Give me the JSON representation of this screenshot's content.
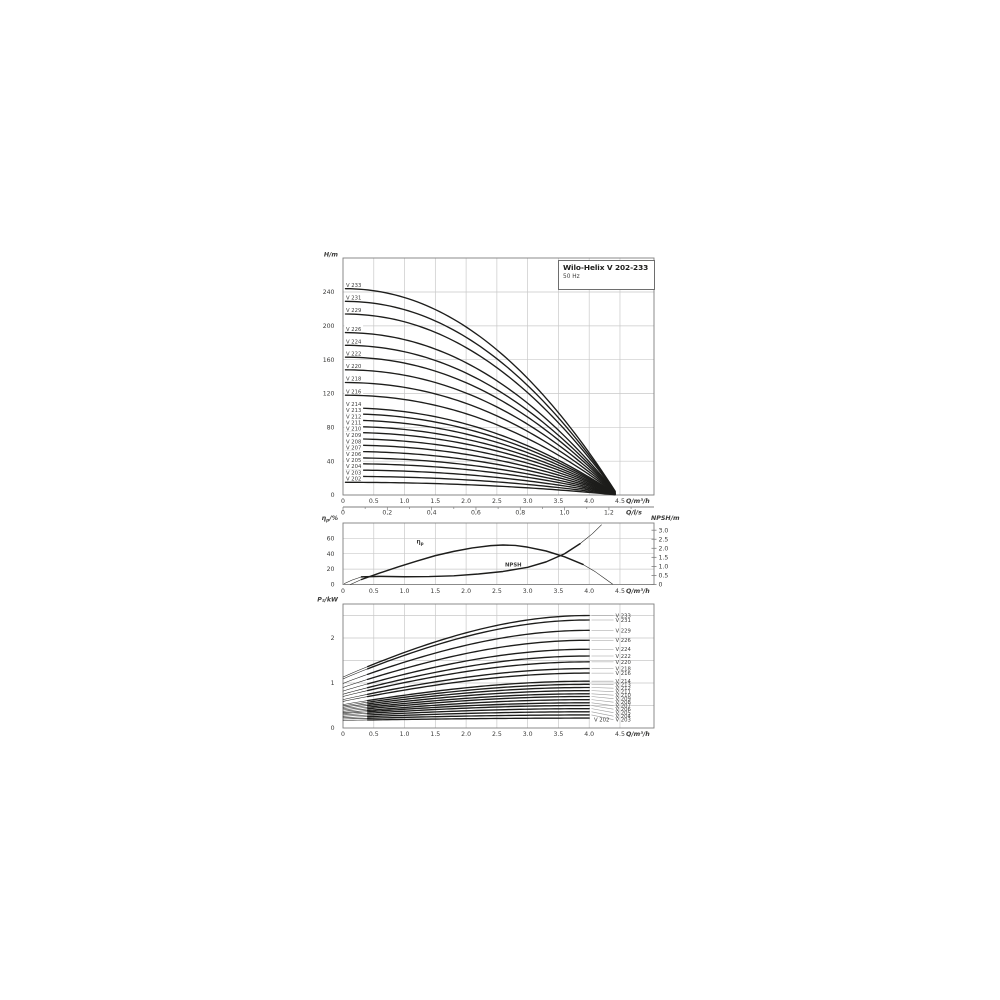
{
  "title_box": {
    "title": "Wilo-Helix V 202-233",
    "subtitle": "50 Hz"
  },
  "colors": {
    "background": "#ffffff",
    "curve": "#1d1d1b",
    "grid": "#c9c9c9",
    "frame": "#7f7f7f",
    "text": "#3c3c3b",
    "leader": "#9b9b9b"
  },
  "chart_data": [
    {
      "id": "head_flow",
      "type": "line",
      "title": "Wilo-Helix V 202-233",
      "subtitle": "50 Hz",
      "ylabel": "H/m",
      "xlabel": "Q/m³/h",
      "x2label": "Q/l/s",
      "xlim": [
        0,
        4.5
      ],
      "ylim": [
        0,
        280
      ],
      "yticks": [
        "0",
        "40",
        "80",
        "120",
        "160",
        "200",
        "240"
      ],
      "xticks": [
        {
          "v": 0,
          "l": "0"
        },
        {
          "v": 0.5,
          "l": "0.5"
        },
        {
          "v": 1,
          "l": "1.0"
        },
        {
          "v": 1.5,
          "l": "1.5"
        },
        {
          "v": 2,
          "l": "2.0"
        },
        {
          "v": 2.5,
          "l": "2.5"
        },
        {
          "v": 3,
          "l": "3.0"
        },
        {
          "v": 3.5,
          "l": "3.5"
        },
        {
          "v": 4,
          "l": "4.0"
        },
        {
          "v": 4.5,
          "l": "4.5"
        }
      ],
      "x2ticks": [
        {
          "v": 0,
          "l": "0"
        },
        {
          "v": 0.2,
          "l": "0,2"
        },
        {
          "v": 0.4,
          "l": "0,4"
        },
        {
          "v": 0.6,
          "l": "0,6"
        },
        {
          "v": 0.8,
          "l": "0,8"
        },
        {
          "v": 1.0,
          "l": "1,0"
        },
        {
          "v": 1.2,
          "l": "1,2"
        }
      ],
      "q_end": 4.42,
      "series": [
        {
          "name": "V 233",
          "shutoff_head_m": 244
        },
        {
          "name": "V 231",
          "shutoff_head_m": 229
        },
        {
          "name": "V 229",
          "shutoff_head_m": 214
        },
        {
          "name": "V 226",
          "shutoff_head_m": 192
        },
        {
          "name": "V 224",
          "shutoff_head_m": 177
        },
        {
          "name": "V 222",
          "shutoff_head_m": 163
        },
        {
          "name": "V 220",
          "shutoff_head_m": 148
        },
        {
          "name": "V 218",
          "shutoff_head_m": 133
        },
        {
          "name": "V 216",
          "shutoff_head_m": 118
        },
        {
          "name": "V 214",
          "shutoff_head_m": 103
        },
        {
          "name": "V 213",
          "shutoff_head_m": 96
        },
        {
          "name": "V 212",
          "shutoff_head_m": 88.5
        },
        {
          "name": "V 211",
          "shutoff_head_m": 81
        },
        {
          "name": "V 210",
          "shutoff_head_m": 74
        },
        {
          "name": "V 209",
          "shutoff_head_m": 66.5
        },
        {
          "name": "V 208",
          "shutoff_head_m": 59
        },
        {
          "name": "V 207",
          "shutoff_head_m": 51.5
        },
        {
          "name": "V 206",
          "shutoff_head_m": 44
        },
        {
          "name": "V 205",
          "shutoff_head_m": 37
        },
        {
          "name": "V 204",
          "shutoff_head_m": 29.5
        },
        {
          "name": "V 203",
          "shutoff_head_m": 22
        },
        {
          "name": "V 202",
          "shutoff_head_m": 15
        }
      ]
    },
    {
      "id": "eff_npsh",
      "type": "line",
      "ylabel_left": "ηp/%",
      "ylabel_right": "NPSH/m",
      "xlabel": "Q/m³/h",
      "yticks_left": [
        "0",
        "20",
        "40",
        "60"
      ],
      "yticks_right": [
        {
          "v": 0,
          "l": "0"
        },
        {
          "v": 0.5,
          "l": "0.5"
        },
        {
          "v": 1.0,
          "l": "1.0"
        },
        {
          "v": 1.5,
          "l": "1.5"
        },
        {
          "v": 2.0,
          "l": "2.0"
        },
        {
          "v": 2.5,
          "l": "2.5"
        },
        {
          "v": 3.0,
          "l": "3.0"
        }
      ],
      "xticks": [
        {
          "v": 0,
          "l": "0"
        },
        {
          "v": 0.5,
          "l": "0.5"
        },
        {
          "v": 1,
          "l": "1.0"
        },
        {
          "v": 1.5,
          "l": "1.5"
        },
        {
          "v": 2,
          "l": "2.0"
        },
        {
          "v": 2.5,
          "l": "2.5"
        },
        {
          "v": 3,
          "l": "3.0"
        },
        {
          "v": 3.5,
          "l": "3.5"
        },
        {
          "v": 4,
          "l": "4.0"
        },
        {
          "v": 4.5,
          "l": "4.5"
        }
      ],
      "series": [
        {
          "name": "ηp",
          "axis": "left",
          "points": [
            [
              0.12,
              0
            ],
            [
              0.3,
              6.5
            ],
            [
              0.6,
              15
            ],
            [
              0.9,
              23
            ],
            [
              1.2,
              30.5
            ],
            [
              1.5,
              37.5
            ],
            [
              1.8,
              43
            ],
            [
              2.1,
              47.5
            ],
            [
              2.4,
              50.5
            ],
            [
              2.6,
              51.3
            ],
            [
              2.8,
              50.7
            ],
            [
              3.0,
              48.5
            ],
            [
              3.3,
              43.5
            ],
            [
              3.6,
              36
            ],
            [
              3.9,
              26
            ],
            [
              4.1,
              16.5
            ],
            [
              4.25,
              8
            ],
            [
              4.38,
              0.5
            ]
          ],
          "thick_range": [
            0.3,
            4.0
          ]
        },
        {
          "name": "NPSH",
          "axis": "right",
          "points": [
            [
              0.02,
              0.05
            ],
            [
              0.15,
              0.25
            ],
            [
              0.3,
              0.42
            ],
            [
              0.6,
              0.45
            ],
            [
              1.0,
              0.43
            ],
            [
              1.4,
              0.44
            ],
            [
              1.8,
              0.48
            ],
            [
              2.2,
              0.58
            ],
            [
              2.6,
              0.72
            ],
            [
              3.0,
              0.95
            ],
            [
              3.3,
              1.25
            ],
            [
              3.6,
              1.7
            ],
            [
              3.85,
              2.25
            ],
            [
              4.05,
              2.8
            ],
            [
              4.2,
              3.3
            ]
          ],
          "thick_range": [
            0.3,
            3.9
          ]
        }
      ]
    },
    {
      "id": "power",
      "type": "line",
      "ylabel": "P₂/kW",
      "xlabel": "Q/m³/h",
      "yticks": [
        "0",
        "1",
        "2"
      ],
      "xticks": [
        {
          "v": 0,
          "l": "0"
        },
        {
          "v": 0.5,
          "l": "0.5"
        },
        {
          "v": 1,
          "l": "1.0"
        },
        {
          "v": 1.5,
          "l": "1.5"
        },
        {
          "v": 2,
          "l": "2.0"
        },
        {
          "v": 2.5,
          "l": "2.5"
        },
        {
          "v": 3,
          "l": "3.0"
        },
        {
          "v": 3.5,
          "l": "3.5"
        },
        {
          "v": 4,
          "l": "4.0"
        },
        {
          "v": 4.5,
          "l": "4.5"
        }
      ],
      "series": [
        {
          "name": "V 233",
          "p2_kw_at_q0": 1.13,
          "p2_kw_at_q4": 2.5
        },
        {
          "name": "V 231",
          "p2_kw_at_q0": 1.09,
          "p2_kw_at_q4": 2.4
        },
        {
          "name": "V 229",
          "p2_kw_at_q0": 0.99,
          "p2_kw_at_q4": 2.17
        },
        {
          "name": "V 226",
          "p2_kw_at_q0": 0.9,
          "p2_kw_at_q4": 1.95
        },
        {
          "name": "V 224",
          "p2_kw_at_q0": 0.82,
          "p2_kw_at_q4": 1.75
        },
        {
          "name": "V 222",
          "p2_kw_at_q0": 0.75,
          "p2_kw_at_q4": 1.6
        },
        {
          "name": "V 220",
          "p2_kw_at_q0": 0.7,
          "p2_kw_at_q4": 1.47
        },
        {
          "name": "V 218",
          "p2_kw_at_q0": 0.63,
          "p2_kw_at_q4": 1.32
        },
        {
          "name": "V 216",
          "p2_kw_at_q0": 0.59,
          "p2_kw_at_q4": 1.22
        },
        {
          "name": "V 214",
          "p2_kw_at_q0": 0.52,
          "p2_kw_at_q4": 1.04
        },
        {
          "name": "V 213",
          "p2_kw_at_q0": 0.49,
          "p2_kw_at_q4": 0.97
        },
        {
          "name": "V 212",
          "p2_kw_at_q0": 0.46,
          "p2_kw_at_q4": 0.9
        },
        {
          "name": "V 211",
          "p2_kw_at_q0": 0.43,
          "p2_kw_at_q4": 0.83
        },
        {
          "name": "V 210",
          "p2_kw_at_q0": 0.4,
          "p2_kw_at_q4": 0.76
        },
        {
          "name": "V 209",
          "p2_kw_at_q0": 0.37,
          "p2_kw_at_q4": 0.7
        },
        {
          "name": "V 208",
          "p2_kw_at_q0": 0.34,
          "p2_kw_at_q4": 0.63
        },
        {
          "name": "V 207",
          "p2_kw_at_q0": 0.32,
          "p2_kw_at_q4": 0.56
        },
        {
          "name": "V 206",
          "p2_kw_at_q0": 0.29,
          "p2_kw_at_q4": 0.5
        },
        {
          "name": "V 205",
          "p2_kw_at_q0": 0.26,
          "p2_kw_at_q4": 0.43
        },
        {
          "name": "V 204",
          "p2_kw_at_q0": 0.23,
          "p2_kw_at_q4": 0.36
        },
        {
          "name": "V 203",
          "p2_kw_at_q0": 0.2,
          "p2_kw_at_q4": 0.29
        },
        {
          "name": "V 202",
          "p2_kw_at_q0": 0.17,
          "p2_kw_at_q4": 0.22
        }
      ]
    }
  ]
}
